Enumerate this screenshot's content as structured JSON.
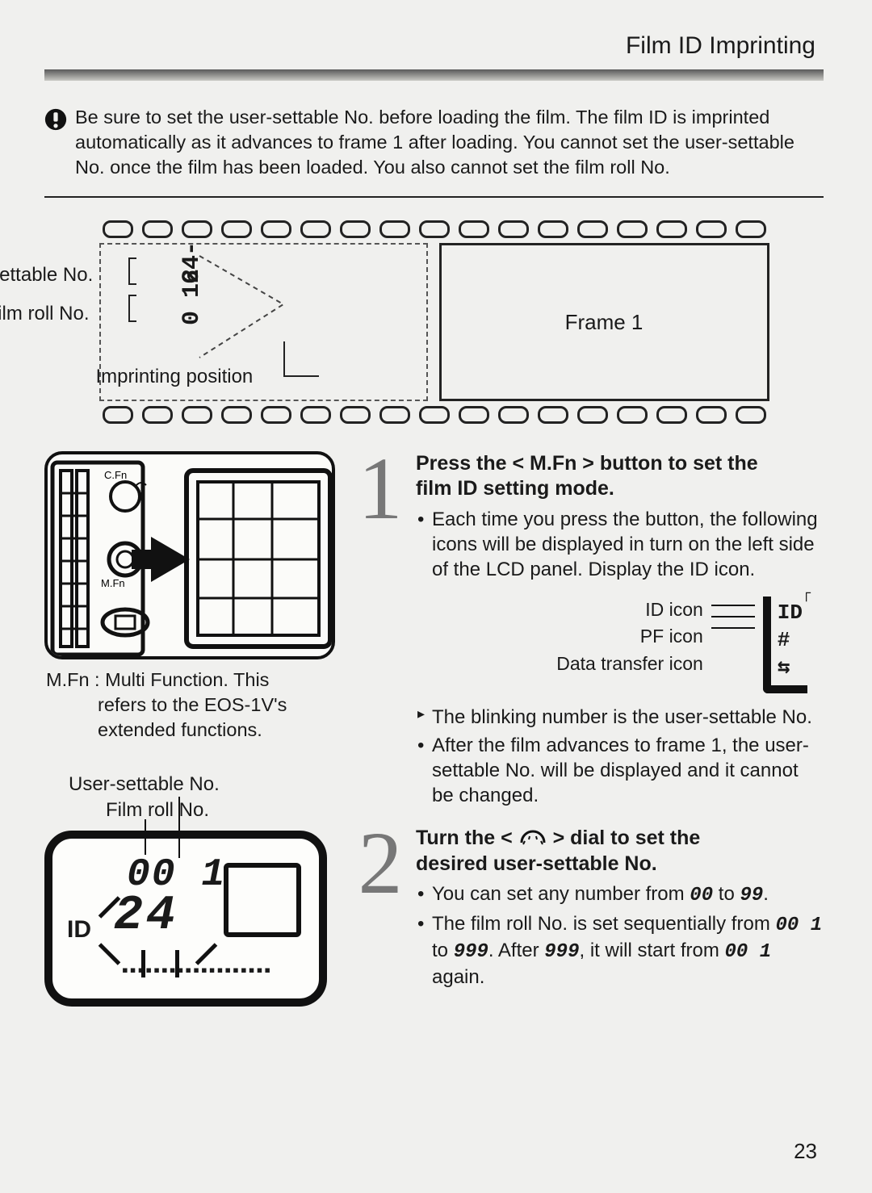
{
  "header": {
    "title": "Film ID Imprinting"
  },
  "warning": {
    "text": "Be sure to set the user-settable No. before loading the film. The film ID is imprinted automatically as it advances to frame 1 after loading. You cannot set the user-settable No. once the film has been loaded. You also cannot set the film roll No."
  },
  "filmstrip": {
    "label_user_settable": "User-settable No.",
    "label_film_roll": "Film roll No.",
    "label_imprint_pos": "Imprinting position",
    "imprint_user_value": "24-",
    "imprint_roll_value": "0 16",
    "frame_label": "Frame 1",
    "sprocket_count": 17
  },
  "camera": {
    "mfn_line1": "M.Fn : Multi Function. This",
    "mfn_line2": "refers to the EOS-1V's",
    "mfn_line3": "extended functions.",
    "btn_cfn": "C.Fn",
    "btn_mfn": "M.Fn"
  },
  "lcd": {
    "label_user": "User-settable No.",
    "label_roll": "Film roll No.",
    "id_text": "ID",
    "seg_roll": "00 1",
    "seg_user": "24",
    "bars": "▪▪▪▪▪▪▪▪▪▪▪▪▪▪▪▪▪▪▪"
  },
  "step1": {
    "head_a": "Press the < M.Fn > button to set the",
    "head_b": "film ID setting mode.",
    "bullet1": "Each time you press the button, the following icons will be displayed in turn on the left side of the LCD panel. Display the ID icon.",
    "legend_id": "ID icon",
    "legend_pf": "PF icon",
    "legend_data": "Data transfer icon",
    "legend_icon_id": "ID",
    "legend_icon_pf": "#",
    "legend_icon_data": "⇆",
    "bullet2": "The blinking number is the user-settable No.",
    "bullet3": "After the film advances to frame 1, the user-settable No. will be displayed and it cannot be changed."
  },
  "step2": {
    "head_a": "Turn the <",
    "head_dial": "⌢",
    "head_b": "> dial to set the",
    "head_c": "desired user-settable No.",
    "bullet1a": "You can set any number from ",
    "bullet1_v1": "00",
    "bullet1b": " to ",
    "bullet1_v2": "99",
    "bullet1c": ".",
    "bullet2a": "The film roll No. is set sequentially from ",
    "bullet2_v1": "00 1",
    "bullet2b": " to ",
    "bullet2_v2": "999",
    "bullet2c": ". After ",
    "bullet2_v3": "999",
    "bullet2d": ", it will start from ",
    "bullet2_v4": "00 1",
    "bullet2e": " again."
  },
  "page_number": "23",
  "colors": {
    "text": "#1a1a1a",
    "page_bg": "#f0f0ee",
    "bar_dark": "#5a5a5a",
    "step_num": "#777777"
  }
}
